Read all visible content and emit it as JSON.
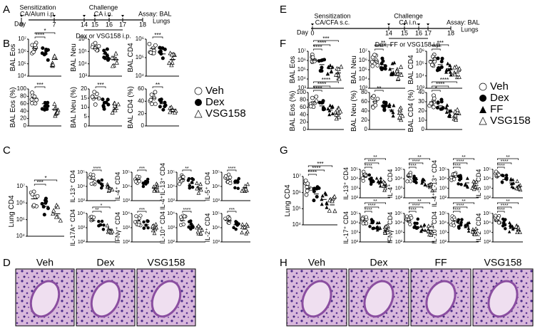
{
  "figure": {
    "A": {
      "label": "A",
      "sensitization": "Sensitization",
      "sens_detail": "CA/Alum i.p.",
      "challenge": "Challenge",
      "chal_detail": "CA i.n.",
      "assay": "Assay: BAL",
      "assay2": "Lungs",
      "day": "Day",
      "days": [
        "0",
        "7",
        "14",
        "15",
        "16",
        "17",
        "18"
      ],
      "treatment": "Dex or VSG158 i.p."
    },
    "B": {
      "label": "B",
      "plots": [
        {
          "ylabel": "BAL Eos",
          "yticks": [
            "10⁷",
            "10⁶",
            "10⁵",
            "10⁴"
          ],
          "sig": [
            "****",
            "*"
          ]
        },
        {
          "ylabel": "BAL Neu",
          "yticks": [
            "10⁶",
            "10⁵",
            "10⁴",
            "10³"
          ],
          "sig": []
        },
        {
          "ylabel": "BAL CD4",
          "yticks": [
            "10⁶",
            "10⁵",
            "10⁴"
          ],
          "sig": [
            "***"
          ]
        },
        {
          "ylabel": "BAL Eos (%)",
          "yticks": [
            "100",
            "80",
            "60",
            "40",
            "20",
            "0"
          ],
          "sig": [
            "***"
          ]
        },
        {
          "ylabel": "BAL Neu (%)",
          "yticks": [
            "20",
            "15",
            "10",
            "5",
            "0"
          ],
          "sig": [
            "***"
          ]
        },
        {
          "ylabel": "BAL CD4 (%)",
          "yticks": [
            "60",
            "40",
            "20",
            "0"
          ],
          "sig": [
            "**"
          ]
        }
      ]
    },
    "C": {
      "label": "C",
      "main": {
        "ylabel": "Lung CD4",
        "yticks": [
          "10⁷",
          "10⁶",
          "10⁵",
          "10⁴"
        ],
        "sig": [
          "***",
          "*"
        ]
      },
      "plots": [
        {
          "ylabel": "IL-13⁺ CD4",
          "yticks": [
            "10⁵",
            "10⁴",
            "10³"
          ],
          "sig": [
            "****"
          ]
        },
        {
          "ylabel": "IL-4⁺ CD4",
          "yticks": [
            "10⁵",
            "10⁴",
            "10³"
          ],
          "sig": [
            "***"
          ]
        },
        {
          "ylabel": "IL-4⁺IL-13⁺ CD4",
          "yticks": [
            "10⁵",
            "10⁴",
            "10³"
          ],
          "sig": [
            "**"
          ]
        },
        {
          "ylabel": "IL-5⁺ CD4",
          "yticks": [
            "10⁵",
            "10⁴",
            "10³"
          ],
          "sig": [
            "****"
          ]
        },
        {
          "ylabel": "IL-17A⁺ CD4",
          "yticks": [
            "10⁴",
            "10³",
            "10²"
          ],
          "sig": [
            "**",
            "*"
          ]
        },
        {
          "ylabel": "IFNγ⁺ CD4",
          "yticks": [
            "10⁴",
            "10³",
            "10²"
          ],
          "sig": [
            "***"
          ]
        },
        {
          "ylabel": "IL-10⁺ CD4",
          "yticks": [
            "10⁴",
            "10³",
            "10²"
          ],
          "sig": [
            "****"
          ]
        },
        {
          "ylabel": "IL-2⁺ CD4",
          "yticks": [
            "10⁵",
            "10⁴",
            "10³"
          ],
          "sig": [
            "***"
          ]
        }
      ]
    },
    "D": {
      "label": "D",
      "images": [
        "Veh",
        "Dex",
        "VSG158"
      ]
    },
    "legend_left": [
      "Veh",
      "Dex",
      "VSG158"
    ],
    "E": {
      "label": "E",
      "sensitization": "Sensitization",
      "sens_detail": "CA/CFA s.c.",
      "challenge": "Challenge",
      "chal_detail": "CA i.n.",
      "assay": "Assay: BAL",
      "assay2": "Lungs",
      "day": "Day",
      "days": [
        "0",
        "14",
        "15",
        "16",
        "17",
        "18"
      ],
      "treatment": "Dex, FF or VSG158 i.p."
    },
    "F": {
      "label": "F",
      "plots": [
        {
          "ylabel": "BAL Eos",
          "yticks": [
            "10⁷",
            "10⁶",
            "10⁵",
            "10⁴",
            "10³"
          ],
          "sig": [
            "****",
            "****",
            "***"
          ]
        },
        {
          "ylabel": "BAL Neu",
          "yticks": [
            "10⁷",
            "10⁶",
            "10⁵",
            "10⁴",
            "10³"
          ],
          "sig": [
            "****",
            "**"
          ]
        },
        {
          "ylabel": "BAL CD4",
          "yticks": [
            "10⁶",
            "10⁵",
            "10⁴",
            "10³"
          ],
          "sig": [
            "****",
            "***"
          ]
        },
        {
          "ylabel": "BAL Eos (%)",
          "yticks": [
            "100",
            "80",
            "60",
            "40",
            "20",
            "0"
          ],
          "sig": [
            "****",
            "****",
            "****"
          ]
        },
        {
          "ylabel": "BAL Neu (%)",
          "yticks": [
            "80",
            "60",
            "40",
            "20",
            "0"
          ],
          "sig": [
            "**"
          ]
        },
        {
          "ylabel": "BAL CD4 (%)",
          "yticks": [
            "40",
            "30",
            "20",
            "10",
            "0"
          ],
          "sig": [
            "*",
            "****",
            "****"
          ]
        }
      ]
    },
    "G": {
      "label": "G",
      "main": {
        "ylabel": "Lung CD4",
        "yticks": [
          "10⁷",
          "10⁶",
          "10⁵",
          "10⁴"
        ],
        "sig": [
          "****",
          "****",
          "***"
        ]
      },
      "plots": [
        {
          "ylabel": "IL-13⁺ CD4",
          "yticks": [
            "10⁵",
            "10⁴",
            "10³",
            "10²"
          ],
          "sig": [
            "****",
            "****",
            "**"
          ]
        },
        {
          "ylabel": "IL-4⁺ CD4",
          "yticks": [
            "10⁵",
            "10⁴",
            "10³",
            "10²"
          ],
          "sig": [
            "****",
            "****",
            "**"
          ]
        },
        {
          "ylabel": "IL-4⁺IL-13⁺ CD4",
          "yticks": [
            "10⁵",
            "10⁴",
            "10³",
            "10²"
          ],
          "sig": [
            "****",
            "****",
            "**"
          ]
        },
        {
          "ylabel": "IL-5⁺ CD4",
          "yticks": [
            "10⁵",
            "10⁴",
            "10³",
            "10²"
          ],
          "sig": [
            "****",
            "****",
            "**"
          ]
        },
        {
          "ylabel": "IL-17⁺ CD4",
          "yticks": [
            "10⁵",
            "10⁴",
            "10³",
            "10²"
          ],
          "sig": [
            "****",
            "****",
            "**"
          ]
        },
        {
          "ylabel": "IFNγ⁺ CD4",
          "yticks": [
            "10⁵",
            "10⁴",
            "10³",
            "10²"
          ],
          "sig": [
            "****",
            "****",
            "**"
          ]
        },
        {
          "ylabel": "IL-10⁺ CD4",
          "yticks": [
            "10⁵",
            "10⁴",
            "10³",
            "10²"
          ],
          "sig": [
            "****",
            "****",
            "**"
          ]
        },
        {
          "ylabel": "IL-2⁺ CD4",
          "yticks": [
            "10⁵",
            "10⁴",
            "10³",
            "10²"
          ],
          "sig": [
            "****",
            "****",
            "**"
          ]
        }
      ]
    },
    "H": {
      "label": "H",
      "images": [
        "Veh",
        "Dex",
        "FF",
        "VSG158"
      ]
    },
    "legend_right": [
      "Veh",
      "Dex",
      "FF",
      "VSG158"
    ]
  }
}
